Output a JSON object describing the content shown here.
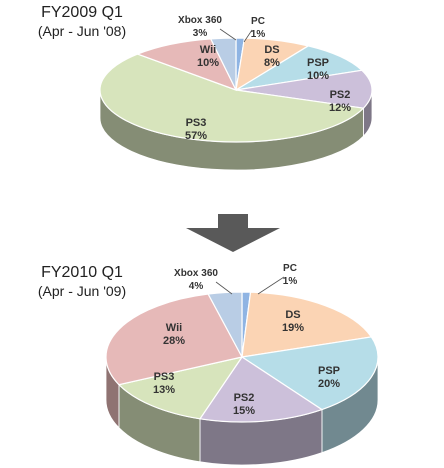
{
  "chart_data": [
    {
      "type": "pie",
      "title_line1": "FY2009 Q1",
      "title_line2": "(Apr - Jun '08)",
      "slices": [
        {
          "name": "PC",
          "value": 1,
          "label": "1%",
          "color": "#8fb4e3"
        },
        {
          "name": "DS",
          "value": 8,
          "label": "8%",
          "color": "#fbd4b4"
        },
        {
          "name": "PSP",
          "value": 10,
          "label": "10%",
          "color": "#b6dde8"
        },
        {
          "name": "PS2",
          "value": 12,
          "label": "12%",
          "color": "#ccc0da"
        },
        {
          "name": "PS3",
          "value": 57,
          "label": "57%",
          "color": "#d7e4bc"
        },
        {
          "name": "Wii",
          "value": 10,
          "label": "10%",
          "color": "#e6b9b8"
        },
        {
          "name": "Xbox 360",
          "value": 3,
          "label": "3%",
          "color": "#b9cde5"
        }
      ]
    },
    {
      "type": "pie",
      "title_line1": "FY2010 Q1",
      "title_line2": "(Apr - Jun '09)",
      "slices": [
        {
          "name": "PC",
          "value": 1,
          "label": "1%",
          "color": "#8fb4e3"
        },
        {
          "name": "DS",
          "value": 19,
          "label": "19%",
          "color": "#fbd4b4"
        },
        {
          "name": "PSP",
          "value": 20,
          "label": "20%",
          "color": "#b6dde8"
        },
        {
          "name": "PS2",
          "value": 15,
          "label": "15%",
          "color": "#ccc0da"
        },
        {
          "name": "PS3",
          "value": 13,
          "label": "13%",
          "color": "#d7e4bc"
        },
        {
          "name": "Wii",
          "value": 28,
          "label": "28%",
          "color": "#e6b9b8"
        },
        {
          "name": "Xbox 360",
          "value": 4,
          "label": "4%",
          "color": "#b9cde5"
        }
      ]
    }
  ],
  "arrow": {
    "direction": "down",
    "color": "#595959"
  }
}
